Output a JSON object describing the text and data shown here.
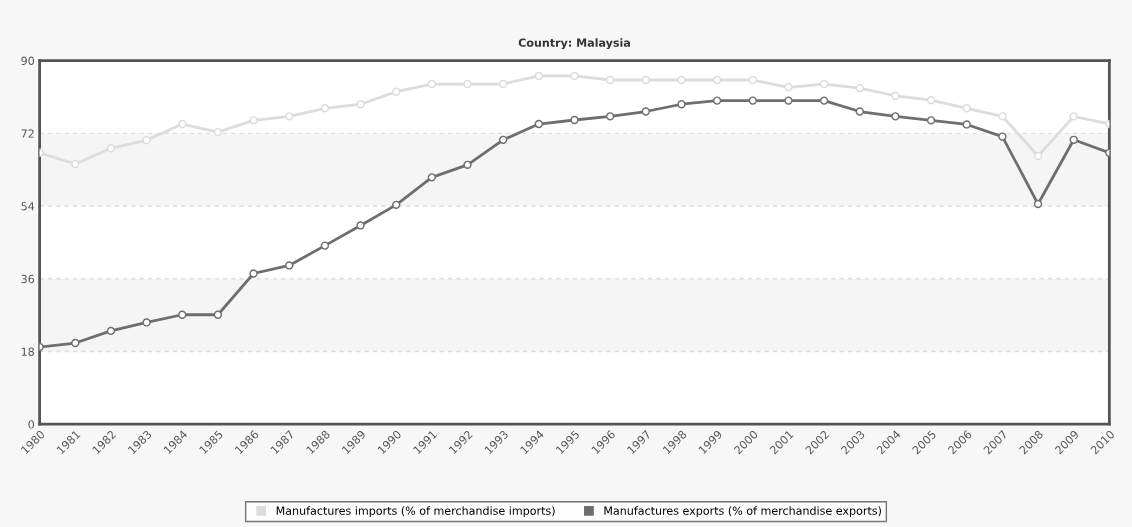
{
  "chart_data": {
    "type": "line",
    "title": "Country: Malaysia",
    "categories": [
      "1980",
      "1981",
      "1982",
      "1983",
      "1984",
      "1985",
      "1986",
      "1987",
      "1988",
      "1989",
      "1990",
      "1991",
      "1992",
      "1993",
      "1994",
      "1995",
      "1996",
      "1997",
      "1998",
      "1999",
      "2000",
      "2001",
      "2002",
      "2003",
      "2004",
      "2005",
      "2006",
      "2007",
      "2008",
      "2009",
      "2010"
    ],
    "series": [
      {
        "name": "Manufactures imports (% of merchandise imports)",
        "color": "#dcdcdc",
        "values": [
          67.2,
          64.4,
          68.3,
          70.3,
          74.3,
          72.3,
          75.2,
          76.2,
          78.2,
          79.2,
          82.3,
          84.2,
          84.2,
          84.2,
          86.2,
          86.2,
          85.2,
          85.2,
          85.2,
          85.2,
          85.2,
          83.4,
          84.2,
          83.2,
          81.3,
          80.2,
          78.2,
          76.2,
          66.4,
          76.2,
          74.3
        ]
      },
      {
        "name": "Manufactures exports (% of merchandise exports)",
        "color": "#6e6e6e",
        "values": [
          19.1,
          20.1,
          23.1,
          25.2,
          27.1,
          27.1,
          37.3,
          39.3,
          44.2,
          49.2,
          54.3,
          61.1,
          64.2,
          70.4,
          74.3,
          75.3,
          76.2,
          77.4,
          79.2,
          80.1,
          80.1,
          80.1,
          80.1,
          77.4,
          76.2,
          75.2,
          74.2,
          71.2,
          54.5,
          70.4,
          67.2
        ]
      }
    ],
    "ylim": [
      0,
      90
    ],
    "yticks": [
      0,
      18,
      36,
      54,
      72,
      90
    ],
    "bands": [
      {
        "axis": "y",
        "from": 18,
        "to": 36,
        "color": "#f5f5f5"
      },
      {
        "axis": "y",
        "from": 54,
        "to": 72,
        "color": "#f5f5f5"
      }
    ],
    "grid": "y",
    "legend": "bottom",
    "marker": "circle",
    "line_style": "solid"
  }
}
